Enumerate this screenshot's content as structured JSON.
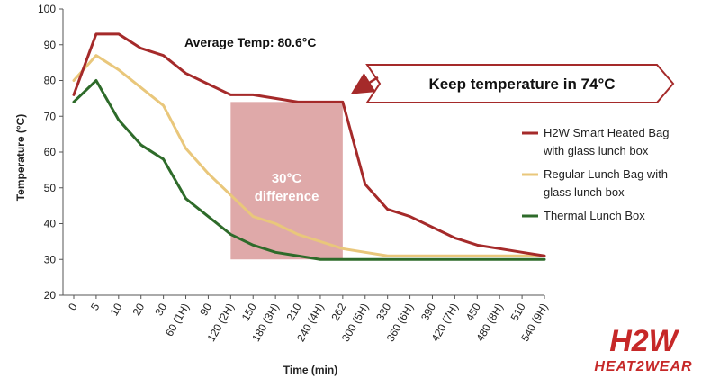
{
  "chart_data": {
    "type": "line",
    "xlabel": "Time (min)",
    "ylabel": "Temperature (°C)",
    "ylim": [
      20,
      100
    ],
    "yticks": [
      20,
      30,
      40,
      50,
      60,
      70,
      80,
      90,
      100
    ],
    "categories": [
      "0",
      "5",
      "10",
      "20",
      "30",
      "60 (1H)",
      "90",
      "120 (2H)",
      "150",
      "180 (3H)",
      "210",
      "240 (4H)",
      "262",
      "300 (5H)",
      "330",
      "360 (6H)",
      "390",
      "420 (7H)",
      "450",
      "480 (8H)",
      "510",
      "540 (9H)"
    ],
    "series": [
      {
        "name_lines": [
          "H2W Smart Heated Bag",
          "with glass lunch box"
        ],
        "color": "#a52a2a",
        "values": [
          76,
          93,
          93,
          89,
          87,
          82,
          79,
          76,
          76,
          75,
          74,
          74,
          74,
          51,
          44,
          42,
          39,
          36,
          34,
          33,
          32,
          31
        ]
      },
      {
        "name_lines": [
          "Regular Lunch Bag with",
          "glass lunch box"
        ],
        "color": "#e9c77b",
        "values": [
          80,
          87,
          83,
          78,
          73,
          61,
          54,
          48,
          42,
          40,
          37,
          35,
          33,
          32,
          31,
          31,
          31,
          31,
          31,
          31,
          31,
          31
        ]
      },
      {
        "name_lines": [
          "Thermal Lunch Box"
        ],
        "color": "#2e6b2a",
        "values": [
          74,
          80,
          69,
          62,
          58,
          47,
          42,
          37,
          34,
          32,
          31,
          30,
          30,
          30,
          30,
          30,
          30,
          30,
          30,
          30,
          30,
          30
        ]
      }
    ],
    "annotations": {
      "average": "Average Temp: 80.6°C",
      "callout": "Keep temperature in 74°C",
      "difference_lines": [
        "30°C",
        "difference"
      ]
    },
    "highlight_region": {
      "x_from": "120 (2H)",
      "x_to": "262",
      "y_from": 30,
      "y_to": 74,
      "color": "#d99a9a"
    },
    "grid": false,
    "legend_position": "right"
  },
  "logo": {
    "mark": "H2W",
    "word": "HEAT2WEAR",
    "color": "#c62828"
  }
}
